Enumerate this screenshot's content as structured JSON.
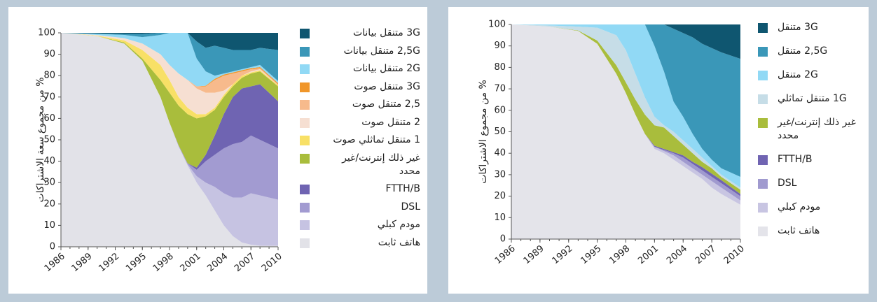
{
  "chart_data": [
    {
      "type": "area",
      "stacked": true,
      "ylabel": "% من مجموع سعة الاشتراكات",
      "x": [
        1986,
        1990,
        1993,
        1995,
        1997,
        1998,
        1999,
        2000,
        2001,
        2002,
        2003,
        2004,
        2005,
        2006,
        2007,
        2008,
        2010
      ],
      "xlim": [
        1986,
        2010
      ],
      "xticks": [
        1986,
        1989,
        1992,
        1995,
        1998,
        2001,
        2004,
        2007,
        2010
      ],
      "ylim": [
        0,
        100
      ],
      "yticks": [
        0,
        10,
        20,
        30,
        40,
        50,
        60,
        70,
        80,
        90,
        100
      ],
      "series": [
        {
          "name": "هاتف ثابت",
          "color": "#e2e2e8",
          "values": [
            100,
            98.5,
            95,
            87,
            70,
            58,
            47,
            38,
            30,
            24,
            17,
            10,
            5,
            2,
            1,
            0.5,
            0.5
          ]
        },
        {
          "name": "مودم كبلي",
          "color": "#c6c3e2",
          "values": [
            0,
            0,
            0,
            0,
            0,
            0,
            0,
            0.5,
            3,
            6,
            11,
            15,
            18,
            21,
            24,
            23.5,
            21.5
          ]
        },
        {
          "name": "DSL",
          "color": "#a29bd1",
          "values": [
            0,
            0,
            0,
            0,
            0,
            0,
            0.5,
            0.5,
            3,
            10,
            15,
            21,
            25,
            26,
            27,
            26,
            24
          ]
        },
        {
          "name": "FTTH/B",
          "color": "#6f64b2",
          "values": [
            0,
            0,
            0,
            0,
            0,
            0,
            0,
            0,
            1,
            3,
            9,
            16,
            22,
            25,
            23,
            26,
            22
          ]
        },
        {
          "name": "غير ذلك إنترنت/غير محدد",
          "color": "#a9bd3c",
          "values": [
            0,
            0,
            0.5,
            1,
            8,
            14,
            18.5,
            23,
            23,
            18,
            12,
            8,
            5,
            5,
            6,
            6,
            7
          ]
        },
        {
          "name": "1 متنقل تماثلي صوت",
          "color": "#f8e066",
          "values": [
            0,
            0.2,
            1,
            4,
            7,
            6,
            4,
            3,
            2,
            1,
            1,
            1,
            1,
            1,
            0.5,
            0.5,
            0.5
          ]
        },
        {
          "name": "2 متنقل صوت",
          "color": "#f6dfd2",
          "values": [
            0,
            0.3,
            1,
            3,
            5,
            7,
            11,
            13,
            12,
            10,
            7,
            2,
            0,
            0,
            0.5,
            0.5,
            0
          ]
        },
        {
          "name": "2,5 متنقل صوت",
          "color": "#f7ba8c",
          "values": [
            0,
            0,
            0,
            0,
            0,
            0,
            0,
            0,
            1,
            3,
            6,
            7,
            5,
            2,
            1,
            0.5,
            0.5
          ]
        },
        {
          "name": "3G متنقل صوت",
          "color": "#f0962a",
          "values": [
            0,
            0,
            0,
            0,
            0,
            0,
            0,
            0,
            0,
            0.3,
            0.5,
            0.5,
            0.5,
            0.5,
            0.5,
            0.5,
            0.5
          ]
        },
        {
          "name": "2G متنقل بيانات",
          "color": "#91d9f5",
          "values": [
            0,
            0.5,
            1.5,
            3,
            9,
            15,
            19,
            22,
            13,
            6.7,
            1.5,
            0.5,
            0.5,
            0.5,
            0.5,
            1,
            1
          ]
        },
        {
          "name": "2,5G متنقل بيانات",
          "color": "#3a97b8",
          "values": [
            0,
            0.2,
            0.5,
            1.5,
            1,
            0,
            0,
            0,
            8,
            11,
            14,
            12,
            10,
            9,
            8,
            8,
            14.5
          ]
        },
        {
          "name": "3G متنقل بيانات",
          "color": "#0f5670",
          "values": [
            0,
            0.3,
            0.5,
            0.5,
            0,
            0,
            0,
            0,
            4,
            7,
            6,
            7,
            8,
            8,
            8,
            7,
            8
          ]
        }
      ]
    },
    {
      "type": "area",
      "stacked": true,
      "ylabel": "% من مجموع الاشتراكات",
      "x": [
        1986,
        1990,
        1993,
        1995,
        1997,
        1998,
        1999,
        2000,
        2001,
        2002,
        2003,
        2004,
        2005,
        2006,
        2007,
        2008,
        2010
      ],
      "xlim": [
        1986,
        2010
      ],
      "xticks": [
        1986,
        1989,
        1992,
        1995,
        1998,
        2001,
        2004,
        2007,
        2010
      ],
      "ylim": [
        0,
        100
      ],
      "yticks": [
        0,
        10,
        20,
        30,
        40,
        50,
        60,
        70,
        80,
        90,
        100
      ],
      "series": [
        {
          "name": "هاتف ثابت",
          "color": "#e4e4ea",
          "values": [
            100,
            99,
            97,
            91,
            77,
            68,
            58,
            49,
            42,
            40,
            37,
            34,
            31,
            28,
            24,
            21,
            16
          ]
        },
        {
          "name": "مودم كبلي",
          "color": "#c8c5e2",
          "values": [
            0,
            0,
            0,
            0,
            0,
            0,
            0,
            0,
            1,
            1,
            2,
            2,
            2,
            2,
            3,
            3,
            2
          ]
        },
        {
          "name": "DSL",
          "color": "#a09acf",
          "values": [
            0,
            0,
            0,
            0,
            0,
            0,
            0,
            0,
            0,
            0.5,
            1,
            2,
            2,
            2,
            2,
            2,
            2
          ]
        },
        {
          "name": "FTTH/B",
          "color": "#7064b2",
          "values": [
            0,
            0,
            0,
            0,
            0,
            0,
            0,
            0,
            0.5,
            0.5,
            0.5,
            1,
            1,
            1.5,
            1.5,
            1.5,
            1
          ]
        },
        {
          "name": "غير ذلك إنترنت/غير محدد",
          "color": "#a9bd3c",
          "values": [
            0,
            0,
            0.2,
            1.5,
            4,
            5,
            7,
            9,
            9.5,
            10,
            7.5,
            5,
            4,
            2.5,
            2.5,
            1.5,
            2
          ]
        },
        {
          "name": "1G متنقل تماثلي",
          "color": "#c6dde7",
          "values": [
            0,
            0.5,
            1.8,
            6,
            14,
            15,
            12,
            8,
            4,
            1,
            2,
            2,
            2,
            2,
            1,
            1,
            1
          ]
        },
        {
          "name": "2G متنقل",
          "color": "#91d9f5",
          "values": [
            0,
            0.5,
            1,
            1.5,
            5,
            12,
            23,
            34,
            33,
            25,
            14,
            11,
            7,
            4,
            3,
            3,
            5
          ]
        },
        {
          "name": "2,5G متنقل",
          "color": "#3a97b8",
          "values": [
            0,
            0,
            0,
            0,
            0,
            0,
            0,
            0,
            10,
            22,
            34,
            39,
            45,
            49,
            52,
            54,
            55
          ]
        },
        {
          "name": "3G متنقل",
          "color": "#0f5670",
          "values": [
            0,
            0,
            0,
            0,
            0,
            0,
            0,
            0,
            0,
            0,
            2,
            4,
            6,
            9,
            11,
            13,
            16
          ]
        }
      ]
    }
  ]
}
